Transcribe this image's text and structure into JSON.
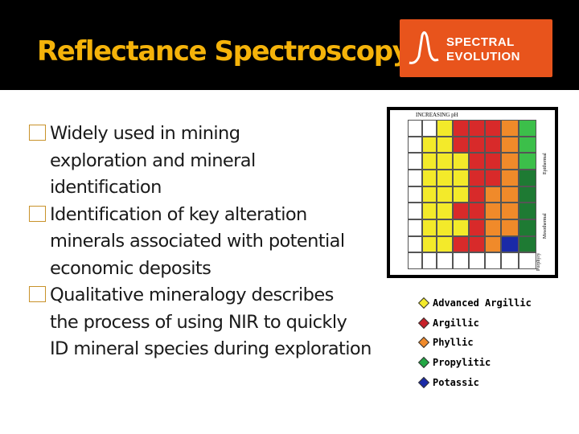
{
  "title": "Reflectance Spectroscopy",
  "logo": {
    "line1": "SPECTRAL",
    "line2": "EVOLUTION"
  },
  "bullets": [
    {
      "lines": [
        "Widely used in mining",
        "exploration and mineral",
        "identification"
      ]
    },
    {
      "lines": [
        "Identification of key alteration",
        "minerals associated with potential",
        "economic deposits"
      ]
    },
    {
      "lines": [
        "Qualitative mineralogy describes",
        "the process of using NIR to quickly",
        "ID mineral species during exploration"
      ]
    }
  ],
  "chart": {
    "header": "INCREASING pH",
    "side_labels": [
      "Epithermal",
      "Mesothermal",
      "Porphyry"
    ]
  },
  "legend": [
    {
      "label": "Advanced Argillic",
      "color": "#f3ea2a"
    },
    {
      "label": "Argillic",
      "color": "#c8202a"
    },
    {
      "label": "Phyllic",
      "color": "#f08a2a"
    },
    {
      "label": "Propylitic",
      "color": "#22a845"
    },
    {
      "label": "Potassic",
      "color": "#1a2aa8"
    }
  ]
}
